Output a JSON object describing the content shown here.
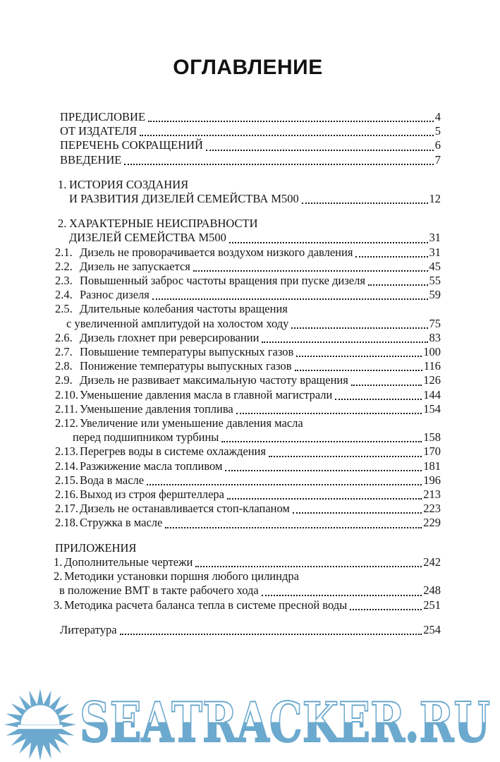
{
  "page": {
    "title": "ОГЛАВЛЕНИЕ",
    "background": "#ffffff",
    "text_color": "#151515"
  },
  "toc": {
    "groups": [
      {
        "rows": [
          {
            "kind": "fm",
            "text": "ПРЕДИСЛОВИЕ",
            "page": "4"
          },
          {
            "kind": "fm",
            "text": "ОТ ИЗДАТЕЛЯ",
            "page": "5"
          },
          {
            "kind": "fm",
            "text": "ПЕРЕЧЕНЬ СОКРАЩЕНИЙ",
            "page": "6"
          },
          {
            "kind": "fm",
            "text": "ВВЕДЕНИЕ",
            "page": "7"
          }
        ]
      },
      {
        "rows": [
          {
            "kind": "sec",
            "num": "1.",
            "text": "ИСТОРИЯ СОЗДАНИЯ"
          },
          {
            "kind": "seccont",
            "text": "И РАЗВИТИЯ ДИЗЕЛЕЙ СЕМЕЙСТВА М500",
            "page": "12"
          }
        ]
      },
      {
        "rows": [
          {
            "kind": "sec",
            "num": "2.",
            "text": "ХАРАКТЕРНЫЕ НЕИСПРАВНОСТИ"
          },
          {
            "kind": "seccont",
            "text": "ДИЗЕЛЕЙ СЕМЕЙСТВА М500",
            "page": "31"
          },
          {
            "kind": "entry",
            "num": "2.1.",
            "text": "Дизель не проворачивается воздухом низкого давления",
            "page": "31"
          },
          {
            "kind": "entry",
            "num": "2.2.",
            "text": "Дизель не запускается",
            "page": "45"
          },
          {
            "kind": "entry",
            "num": "2.3.",
            "text": "Повышенный заброс частоты вращения при пуске дизеля",
            "page": "55"
          },
          {
            "kind": "entry",
            "num": "2.4.",
            "text": "Разнос дизеля",
            "page": "59"
          },
          {
            "kind": "entry",
            "num": "2.5.",
            "text": "Длительные колебания частоты вращения"
          },
          {
            "kind": "cont25",
            "text": "с увеличенной амплитудой на холостом ходу",
            "page": "75"
          },
          {
            "kind": "entry",
            "num": "2.6.",
            "text": "Дизель глохнет при реверсировании",
            "page": "83"
          },
          {
            "kind": "entry",
            "num": "2.7.",
            "text": "Повышение температуры выпускных газов",
            "page": "100"
          },
          {
            "kind": "entry",
            "num": "2.8.",
            "text": "Понижение температуры выпускных газов",
            "page": "116"
          },
          {
            "kind": "entry",
            "num": "2.9.",
            "text": "Дизель не развивает максимальную частоту вращения",
            "page": "126"
          },
          {
            "kind": "entry",
            "num": "2.10.",
            "text": "Уменьшение давления масла в главной магистрали",
            "page": "144"
          },
          {
            "kind": "entry",
            "num": "2.11.",
            "text": "Уменьшение давления топлива",
            "page": "154"
          },
          {
            "kind": "entry",
            "num": "2.12.",
            "text": "Увеличение или уменьшение давления масла"
          },
          {
            "kind": "cont212",
            "text": "перед подшипником турбины",
            "page": "158"
          },
          {
            "kind": "entry",
            "num": "2.13.",
            "text": "Перегрев воды в системе охлаждения",
            "page": "170"
          },
          {
            "kind": "entry",
            "num": "2.14.",
            "text": "Разжижение масла топливом",
            "page": "181"
          },
          {
            "kind": "entry",
            "num": "2.15.",
            "text": "Вода в масле",
            "page": "196"
          },
          {
            "kind": "entry",
            "num": "2.16.",
            "text": "Выход из строя ферштеллера",
            "page": "213"
          },
          {
            "kind": "entry",
            "num": "2.17.",
            "text": "Дизель не останавливается стоп-клапаном",
            "page": "223"
          },
          {
            "kind": "entry",
            "num": "2.18.",
            "text": "Стружка в масле",
            "page": "229"
          }
        ]
      },
      {
        "rows": [
          {
            "kind": "head",
            "text": "ПРИЛОЖЕНИЯ"
          },
          {
            "kind": "app",
            "num": "1.",
            "text": "Дополнительные чертежи",
            "page": "242"
          },
          {
            "kind": "app",
            "num": "2.",
            "text": "Методики установки поршня любого цилиндра"
          },
          {
            "kind": "appcont",
            "text": "в положение ВМТ в такте рабочего хода",
            "page": "248"
          },
          {
            "kind": "app",
            "num": "3.",
            "text": "Методика расчета баланса тепла в системе пресной воды",
            "page": "251"
          }
        ]
      },
      {
        "rows": [
          {
            "kind": "lit",
            "text": "Литература",
            "page": "254"
          }
        ]
      }
    ]
  },
  "watermark": {
    "text": "SEATRACKER.RU",
    "color": "#6CA9CE",
    "icon": "sun-logo"
  }
}
